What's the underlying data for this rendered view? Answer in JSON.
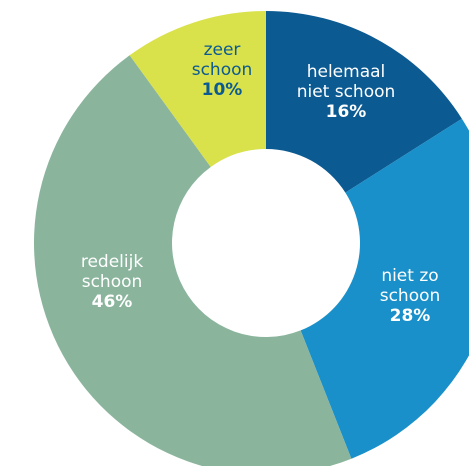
{
  "chart_data": {
    "type": "donut",
    "categories": [
      [
        "helemaal",
        "niet schoon"
      ],
      [
        "niet zo",
        "schoon"
      ],
      [
        "redelijk",
        "schoon"
      ],
      [
        "zeer",
        "schoon"
      ]
    ],
    "values": [
      16,
      28,
      46,
      10
    ],
    "value_labels": [
      "16%",
      "28%",
      "46%",
      "10%"
    ],
    "colors": [
      "#0b5a92",
      "#1990c9",
      "#8ab59c",
      "#d9e14b"
    ],
    "label_colors": [
      "#ffffff",
      "#ffffff",
      "#ffffff",
      "#0b5a92"
    ]
  }
}
